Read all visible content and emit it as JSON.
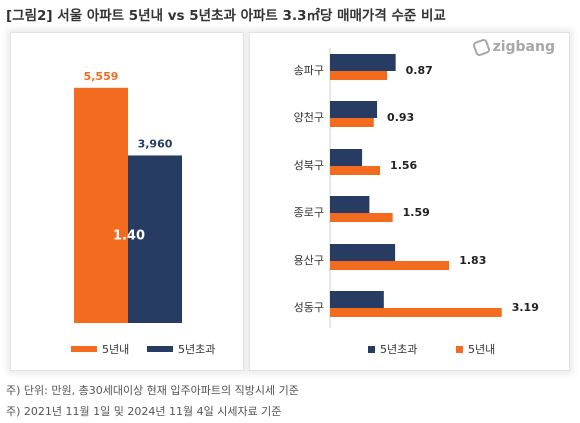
{
  "title": "[그림2] 서울 아파트 5년내 vs 5년초과 아파트 3.3㎡당 매매가격 수준 비교",
  "logo": {
    "text": "zigbang",
    "icon": "zigbang-logo-icon"
  },
  "colors": {
    "orange": "#F26B1F",
    "navy": "#273C62"
  },
  "chart_data": [
    {
      "type": "bar",
      "categories": [
        "5년내",
        "5년초과"
      ],
      "series": [
        {
          "name": "5년내",
          "values": [
            5559,
            null
          ]
        },
        {
          "name": "5년초과",
          "values": [
            null,
            3960
          ]
        }
      ],
      "value_labels": [
        "5,559",
        "3,960"
      ],
      "ratio_label": "1.40",
      "ylim": [
        0,
        6500
      ],
      "legend": [
        "5년내",
        "5년초과"
      ],
      "legend_position": "bottom",
      "grid": false
    },
    {
      "type": "bar",
      "orientation": "horizontal",
      "categories": [
        "송파구",
        "양천구",
        "성북구",
        "종로구",
        "용산구",
        "성동구"
      ],
      "series": [
        {
          "name": "5년초과",
          "values": [
            5050,
            3620,
            2470,
            3030,
            5010,
            4140
          ]
        },
        {
          "name": "5년내",
          "values": [
            4390,
            3370,
            3850,
            4820,
            9170,
            13210
          ]
        }
      ],
      "ratio_labels": [
        "0.87",
        "0.93",
        "1.56",
        "1.59",
        "1.83",
        "3.19"
      ],
      "xlim": [
        0,
        14000
      ],
      "legend": [
        "5년초과",
        "5년내"
      ],
      "legend_position": "bottom",
      "grid": false
    }
  ],
  "notes": [
    "주) 단위: 만원, 총30세대이상 현재 입주아파트의 직방시세 기준",
    "주) 2021년 11월 1일 및 2024년 11월 4일 시세자료 기준"
  ]
}
